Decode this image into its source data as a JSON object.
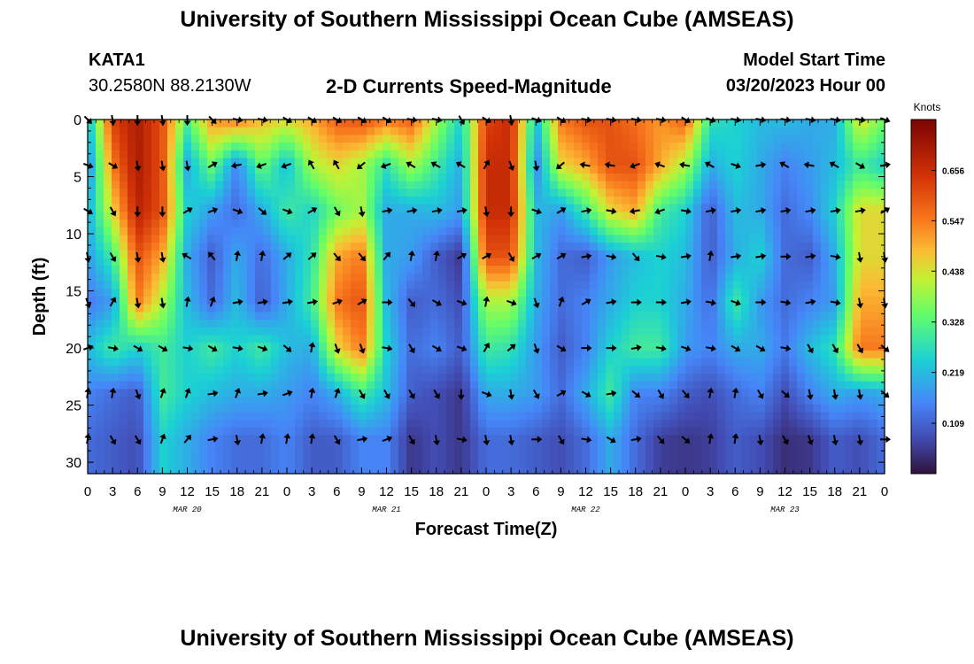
{
  "header": {
    "title": "University of Southern Mississippi Ocean Cube (AMSEAS)",
    "footer_title": "University of Southern Mississippi Ocean Cube (AMSEAS)",
    "station_name": "KATA1",
    "station_coords": "30.2580N  88.2130W",
    "plot_title": "2-D Currents Speed-Magnitude",
    "model_start_label": "Model Start Time",
    "model_start_value": "03/20/2023 Hour 00"
  },
  "chart_data": {
    "type": "heatmap",
    "title": "2-D Currents Speed-Magnitude",
    "xlabel": "Forecast Time(Z)",
    "ylabel": "Depth (ft)",
    "x_tick_labels": [
      "0",
      "3",
      "6",
      "9",
      "12",
      "15",
      "18",
      "21",
      "0",
      "3",
      "6",
      "9",
      "12",
      "15",
      "18",
      "21",
      "0",
      "3",
      "6",
      "9",
      "12",
      "15",
      "18",
      "21",
      "0",
      "3",
      "6",
      "9",
      "12",
      "15",
      "18",
      "21",
      "0"
    ],
    "xlim_hours": [
      0,
      96
    ],
    "date_labels": [
      {
        "label": "MAR 20",
        "hour": 12
      },
      {
        "label": "MAR 21",
        "hour": 36
      },
      {
        "label": "MAR 22",
        "hour": 60
      },
      {
        "label": "MAR 23",
        "hour": 84
      }
    ],
    "y_ticks": [
      0,
      5,
      10,
      15,
      20,
      25,
      30
    ],
    "ylim": [
      0,
      31
    ],
    "colorbar": {
      "label": "Knots",
      "ticks": [
        0.109,
        0.219,
        0.328,
        0.438,
        0.547,
        0.656
      ],
      "range": [
        0.0,
        0.766
      ]
    },
    "vector_times_hours": [
      0,
      3,
      6,
      9,
      12,
      15,
      18,
      21,
      24,
      27,
      30,
      33,
      36,
      39,
      42,
      45,
      48,
      51,
      54,
      57,
      60,
      63,
      66,
      69,
      72,
      75,
      78,
      81,
      84,
      87,
      90,
      93,
      96
    ],
    "vector_depths_ft": [
      0,
      4,
      8,
      12,
      16,
      20,
      24,
      28
    ],
    "speed_knots": [
      [
        0.21,
        0.62,
        0.7,
        0.6,
        0.32,
        0.52,
        0.55,
        0.48,
        0.45,
        0.5,
        0.58,
        0.6,
        0.55,
        0.58,
        0.4,
        0.25,
        0.62,
        0.66,
        0.22,
        0.55,
        0.6,
        0.6,
        0.56,
        0.52,
        0.58,
        0.28,
        0.25,
        0.22,
        0.22,
        0.2,
        0.2,
        0.45,
        0.35
      ],
      [
        0.14,
        0.55,
        0.7,
        0.6,
        0.2,
        0.35,
        0.15,
        0.35,
        0.22,
        0.4,
        0.45,
        0.4,
        0.28,
        0.4,
        0.3,
        0.2,
        0.66,
        0.66,
        0.15,
        0.45,
        0.5,
        0.6,
        0.6,
        0.5,
        0.4,
        0.2,
        0.25,
        0.2,
        0.15,
        0.18,
        0.22,
        0.3,
        0.25
      ],
      [
        0.2,
        0.45,
        0.68,
        0.6,
        0.25,
        0.18,
        0.12,
        0.2,
        0.3,
        0.25,
        0.35,
        0.4,
        0.2,
        0.2,
        0.22,
        0.18,
        0.66,
        0.66,
        0.22,
        0.18,
        0.3,
        0.45,
        0.5,
        0.3,
        0.25,
        0.1,
        0.22,
        0.2,
        0.12,
        0.16,
        0.25,
        0.45,
        0.45
      ],
      [
        0.18,
        0.3,
        0.6,
        0.5,
        0.2,
        0.1,
        0.2,
        0.12,
        0.2,
        0.28,
        0.5,
        0.55,
        0.2,
        0.18,
        0.1,
        0.05,
        0.6,
        0.6,
        0.22,
        0.12,
        0.1,
        0.18,
        0.22,
        0.25,
        0.22,
        0.1,
        0.2,
        0.25,
        0.12,
        0.1,
        0.2,
        0.45,
        0.45
      ],
      [
        0.14,
        0.18,
        0.55,
        0.4,
        0.22,
        0.12,
        0.22,
        0.1,
        0.2,
        0.3,
        0.55,
        0.6,
        0.22,
        0.1,
        0.12,
        0.08,
        0.4,
        0.4,
        0.2,
        0.12,
        0.15,
        0.2,
        0.25,
        0.25,
        0.2,
        0.12,
        0.3,
        0.18,
        0.12,
        0.15,
        0.18,
        0.5,
        0.5
      ],
      [
        0.22,
        0.3,
        0.25,
        0.3,
        0.25,
        0.3,
        0.25,
        0.3,
        0.22,
        0.2,
        0.45,
        0.55,
        0.25,
        0.12,
        0.15,
        0.1,
        0.3,
        0.28,
        0.18,
        0.1,
        0.15,
        0.25,
        0.3,
        0.3,
        0.18,
        0.15,
        0.2,
        0.2,
        0.14,
        0.22,
        0.28,
        0.55,
        0.55
      ],
      [
        0.15,
        0.12,
        0.1,
        0.3,
        0.25,
        0.22,
        0.2,
        0.2,
        0.18,
        0.15,
        0.2,
        0.3,
        0.22,
        0.1,
        0.08,
        0.05,
        0.2,
        0.2,
        0.18,
        0.12,
        0.2,
        0.3,
        0.15,
        0.15,
        0.1,
        0.08,
        0.12,
        0.15,
        0.08,
        0.15,
        0.2,
        0.18,
        0.2
      ],
      [
        0.12,
        0.1,
        0.08,
        0.25,
        0.2,
        0.15,
        0.12,
        0.12,
        0.15,
        0.1,
        0.1,
        0.15,
        0.15,
        0.05,
        0.08,
        0.05,
        0.12,
        0.12,
        0.1,
        0.08,
        0.12,
        0.2,
        0.12,
        0.06,
        0.05,
        0.06,
        0.1,
        0.08,
        0.04,
        0.05,
        0.1,
        0.08,
        0.12
      ]
    ],
    "direction_deg_cw_from_up": [
      [
        135,
        170,
        180,
        170,
        180,
        135,
        100,
        100,
        120,
        120,
        120,
        120,
        120,
        100,
        100,
        150,
        120,
        170,
        110,
        120,
        100,
        100,
        100,
        100,
        120,
        110,
        100,
        100,
        100,
        100,
        100,
        100,
        110
      ],
      [
        110,
        120,
        170,
        170,
        170,
        60,
        260,
        250,
        250,
        330,
        330,
        230,
        250,
        300,
        300,
        300,
        30,
        160,
        170,
        230,
        280,
        280,
        250,
        290,
        280,
        300,
        110,
        80,
        300,
        280,
        300,
        120,
        80
      ],
      [
        120,
        150,
        180,
        180,
        60,
        70,
        110,
        130,
        110,
        60,
        150,
        170,
        80,
        80,
        80,
        80,
        170,
        180,
        110,
        60,
        80,
        100,
        260,
        250,
        100,
        80,
        80,
        80,
        80,
        80,
        80,
        80,
        60
      ],
      [
        170,
        150,
        170,
        170,
        300,
        320,
        10,
        10,
        50,
        50,
        140,
        140,
        40,
        10,
        10,
        60,
        60,
        150,
        60,
        60,
        80,
        100,
        140,
        100,
        80,
        10,
        80,
        80,
        90,
        80,
        100,
        170,
        170
      ],
      [
        160,
        30,
        170,
        170,
        10,
        20,
        80,
        80,
        80,
        80,
        70,
        60,
        90,
        140,
        120,
        110,
        10,
        110,
        160,
        20,
        60,
        80,
        90,
        90,
        80,
        100,
        110,
        90,
        100,
        80,
        100,
        170,
        170
      ],
      [
        70,
        100,
        120,
        120,
        100,
        120,
        100,
        110,
        130,
        10,
        160,
        160,
        100,
        150,
        120,
        110,
        30,
        50,
        160,
        120,
        90,
        90,
        80,
        100,
        110,
        100,
        120,
        120,
        100,
        150,
        150,
        150,
        130
      ],
      [
        10,
        10,
        160,
        20,
        20,
        80,
        20,
        80,
        70,
        10,
        20,
        150,
        150,
        150,
        150,
        180,
        110,
        170,
        150,
        60,
        120,
        80,
        130,
        150,
        140,
        10,
        10,
        150,
        130,
        170,
        170,
        170,
        130
      ],
      [
        10,
        150,
        150,
        20,
        40,
        80,
        170,
        10,
        10,
        10,
        150,
        80,
        70,
        150,
        170,
        100,
        170,
        170,
        90,
        150,
        100,
        120,
        80,
        140,
        130,
        10,
        10,
        170,
        150,
        160,
        170,
        170,
        90
      ]
    ]
  }
}
